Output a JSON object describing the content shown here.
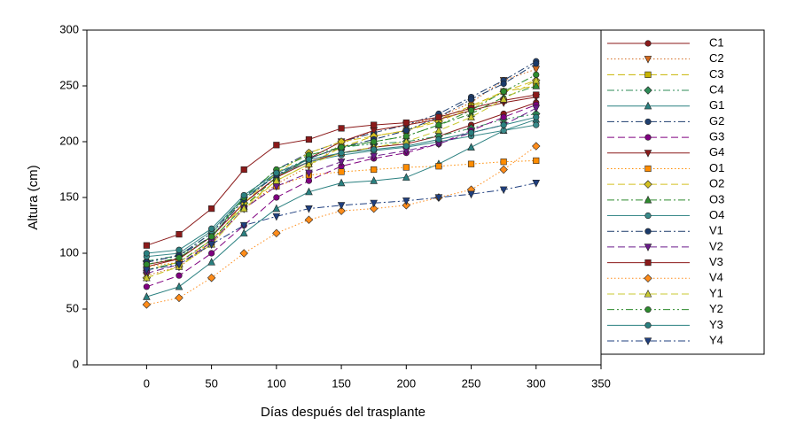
{
  "chart_data": {
    "type": "line",
    "x_label": "Días después del trasplante",
    "y_label": "Altura (cm)",
    "x": [
      0,
      25,
      50,
      75,
      100,
      125,
      150,
      175,
      200,
      225,
      250,
      275,
      300
    ],
    "xlim": [
      -46,
      350
    ],
    "xticks": [
      0,
      50,
      100,
      150,
      200,
      250,
      300,
      350
    ],
    "ylim": [
      0,
      300
    ],
    "yticks": [
      0,
      50,
      100,
      150,
      200,
      250,
      300
    ],
    "grid": false,
    "legend": "right",
    "series": [
      {
        "name": "C1",
        "color": "#8b1a1a",
        "marker": "circle",
        "dash": "solid",
        "values": [
          90,
          95,
          115,
          145,
          168,
          182,
          190,
          195,
          198,
          205,
          215,
          225,
          235
        ]
      },
      {
        "name": "C2",
        "color": "#d2691e",
        "marker": "triangle-down",
        "dash": "dotted",
        "values": [
          80,
          88,
          108,
          140,
          162,
          178,
          198,
          210,
          215,
          222,
          235,
          255,
          265
        ]
      },
      {
        "name": "C3",
        "color": "#c8b400",
        "marker": "square",
        "dash": "dashed",
        "values": [
          85,
          92,
          112,
          142,
          165,
          180,
          195,
          205,
          210,
          220,
          232,
          245,
          250
        ]
      },
      {
        "name": "C4",
        "color": "#2e8b57",
        "marker": "diamond",
        "dash": "dashdotdot",
        "values": [
          93,
          98,
          118,
          148,
          172,
          185,
          195,
          198,
          200,
          205,
          212,
          220,
          225
        ]
      },
      {
        "name": "G1",
        "color": "#2a8080",
        "marker": "triangle-up",
        "dash": "solid",
        "values": [
          61,
          70,
          92,
          118,
          140,
          155,
          163,
          165,
          168,
          180,
          195,
          210,
          220
        ]
      },
      {
        "name": "G2",
        "color": "#1f3f6f",
        "marker": "circle",
        "dash": "dashdot",
        "values": [
          92,
          98,
          118,
          150,
          175,
          190,
          200,
          208,
          215,
          225,
          240,
          255,
          272
        ]
      },
      {
        "name": "G3",
        "color": "#800080",
        "marker": "circle",
        "dash": "dashed",
        "values": [
          70,
          80,
          100,
          125,
          150,
          165,
          178,
          185,
          190,
          198,
          210,
          222,
          233
        ]
      },
      {
        "name": "G4",
        "color": "#8b1a1a",
        "marker": "triangle-down",
        "dash": "solid",
        "values": [
          88,
          95,
          115,
          145,
          168,
          185,
          200,
          210,
          215,
          220,
          228,
          235,
          240
        ]
      },
      {
        "name": "O1",
        "color": "#ff8c00",
        "marker": "square",
        "dash": "dotted",
        "values": [
          88,
          92,
          110,
          140,
          160,
          170,
          173,
          175,
          177,
          178,
          180,
          182,
          183
        ]
      },
      {
        "name": "O2",
        "color": "#d4c020",
        "marker": "diamond",
        "dash": "dashed",
        "values": [
          78,
          88,
          110,
          145,
          172,
          190,
          200,
          205,
          210,
          218,
          230,
          245,
          255
        ]
      },
      {
        "name": "O3",
        "color": "#2e8b2e",
        "marker": "triangle-up",
        "dash": "dashdot",
        "values": [
          85,
          92,
          112,
          142,
          168,
          185,
          195,
          200,
          205,
          215,
          225,
          240,
          250
        ]
      },
      {
        "name": "O4",
        "color": "#3a8a8a",
        "marker": "circle",
        "dash": "solid",
        "values": [
          97,
          100,
          120,
          150,
          170,
          182,
          188,
          192,
          195,
          200,
          205,
          210,
          215
        ]
      },
      {
        "name": "V1",
        "color": "#1a3a6a",
        "marker": "circle",
        "dash": "dashdot",
        "values": [
          92,
          98,
          115,
          148,
          170,
          185,
          195,
          202,
          210,
          222,
          238,
          252,
          270
        ]
      },
      {
        "name": "V2",
        "color": "#6a1a8a",
        "marker": "triangle-down",
        "dash": "dashed",
        "values": [
          82,
          90,
          110,
          140,
          160,
          172,
          182,
          187,
          192,
          198,
          208,
          215,
          230
        ]
      },
      {
        "name": "V3",
        "color": "#8b1a1a",
        "marker": "square",
        "dash": "solid",
        "values": [
          107,
          117,
          140,
          175,
          197,
          202,
          212,
          215,
          217,
          222,
          230,
          237,
          242
        ]
      },
      {
        "name": "V4",
        "color": "#ff8c1a",
        "marker": "diamond",
        "dash": "dotted",
        "values": [
          54,
          60,
          78,
          100,
          118,
          130,
          138,
          140,
          143,
          150,
          157,
          175,
          196
        ]
      },
      {
        "name": "Y1",
        "color": "#c8c830",
        "marker": "triangle-up",
        "dash": "dashed",
        "values": [
          78,
          88,
          108,
          140,
          165,
          180,
          190,
          195,
          200,
          210,
          222,
          238,
          255
        ]
      },
      {
        "name": "Y2",
        "color": "#2e8b2e",
        "marker": "circle",
        "dash": "dashdotdot",
        "values": [
          90,
          96,
          115,
          150,
          175,
          188,
          195,
          200,
          205,
          215,
          228,
          245,
          260
        ]
      },
      {
        "name": "Y3",
        "color": "#2a8080",
        "marker": "circle",
        "dash": "solid",
        "values": [
          100,
          103,
          122,
          152,
          172,
          184,
          190,
          193,
          196,
          202,
          208,
          215,
          222
        ]
      },
      {
        "name": "Y4",
        "color": "#1f3f7f",
        "marker": "triangle-down",
        "dash": "dashdot",
        "values": [
          85,
          90,
          108,
          125,
          133,
          140,
          143,
          145,
          147,
          150,
          153,
          157,
          163
        ]
      }
    ]
  }
}
